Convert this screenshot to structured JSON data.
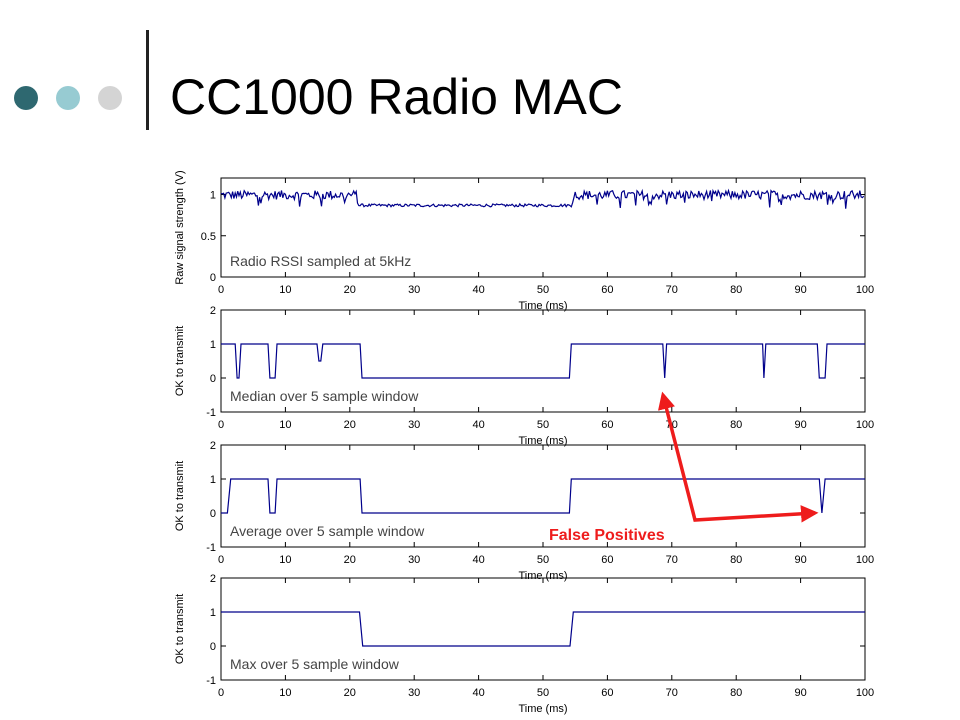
{
  "slide": {
    "title": "CC1000 Radio MAC",
    "bullet_colors": [
      "#2e6870",
      "#97cbd2",
      "#d4d4d4"
    ]
  },
  "callout": {
    "text": "False Positives",
    "color": "#ee1c1c"
  },
  "chart_data": [
    {
      "type": "line",
      "annotation": "Radio RSSI sampled at 5kHz",
      "xlabel": "Time (ms)",
      "ylabel": "Raw signal strength (V)",
      "xlim": [
        0,
        100
      ],
      "ylim": [
        0,
        1.2
      ],
      "xticks": [
        0,
        10,
        20,
        30,
        40,
        50,
        60,
        70,
        80,
        90,
        100
      ],
      "yticks": [
        0,
        0.5,
        1
      ],
      "ytick_labels": [
        "0",
        "0.5",
        "1"
      ],
      "grid": false,
      "color": "#00008b",
      "series": [
        {
          "noisy": true,
          "x": [
            0,
            21,
            21.3,
            54.5,
            54.8,
            100
          ],
          "values": [
            1.0,
            1.0,
            0.87,
            0.87,
            1.0,
            1.0
          ]
        }
      ]
    },
    {
      "type": "line",
      "annotation": "Median over 5 sample window",
      "xlabel": "Time (ms)",
      "ylabel": "OK to transmit",
      "xlim": [
        0,
        100
      ],
      "ylim": [
        -1,
        2
      ],
      "xticks": [
        0,
        10,
        20,
        30,
        40,
        50,
        60,
        70,
        80,
        90,
        100
      ],
      "yticks": [
        -1,
        0,
        1,
        2
      ],
      "ytick_labels": [
        "-1",
        "0",
        "1",
        "2"
      ],
      "grid": false,
      "color": "#00008b",
      "series": [
        {
          "x": [
            0,
            2.2,
            2.5,
            2.8,
            3.1,
            7.3,
            7.6,
            8.4,
            8.7,
            14.9,
            15.2,
            15.5,
            15.8,
            21.6,
            21.9,
            54.1,
            54.4,
            68.6,
            68.9,
            69.2,
            84.1,
            84.3,
            84.6,
            92.6,
            92.9,
            93.8,
            94.1,
            100
          ],
          "values": [
            1,
            1,
            0,
            0,
            1,
            1,
            0,
            0,
            1,
            1,
            0.5,
            0.5,
            1,
            1,
            0,
            0,
            1,
            1,
            0,
            1,
            1,
            0,
            1,
            1,
            0,
            0,
            1,
            1
          ]
        }
      ]
    },
    {
      "type": "line",
      "annotation": "Average over 5 sample window",
      "xlabel": "Time (ms)",
      "ylabel": "OK to transmit",
      "xlim": [
        0,
        100
      ],
      "ylim": [
        -1,
        2
      ],
      "xticks": [
        0,
        10,
        20,
        30,
        40,
        50,
        60,
        70,
        80,
        90,
        100
      ],
      "yticks": [
        -1,
        0,
        1,
        2
      ],
      "ytick_labels": [
        "-1",
        "0",
        "1",
        "2"
      ],
      "grid": false,
      "color": "#00008b",
      "series": [
        {
          "x": [
            0,
            1.0,
            1.5,
            7.3,
            7.6,
            8.4,
            8.7,
            21.6,
            21.9,
            54.1,
            54.4,
            92.9,
            93.3,
            93.8,
            100
          ],
          "values": [
            0,
            0,
            1,
            1,
            0,
            0,
            1,
            1,
            0,
            0,
            1,
            1,
            0,
            1,
            1
          ]
        }
      ]
    },
    {
      "type": "line",
      "annotation": "Max over 5 sample window",
      "xlabel": "Time (ms)",
      "ylabel": "OK to transmit",
      "xlim": [
        0,
        100
      ],
      "ylim": [
        -1,
        2
      ],
      "xticks": [
        0,
        10,
        20,
        30,
        40,
        50,
        60,
        70,
        80,
        90,
        100
      ],
      "yticks": [
        -1,
        0,
        1,
        2
      ],
      "ytick_labels": [
        "-1",
        "0",
        "1",
        "2"
      ],
      "grid": false,
      "color": "#00008b",
      "series": [
        {
          "x": [
            0,
            21.5,
            22.0,
            54.2,
            54.7,
            100
          ],
          "values": [
            1,
            1,
            0,
            0,
            1,
            1
          ]
        }
      ]
    }
  ]
}
